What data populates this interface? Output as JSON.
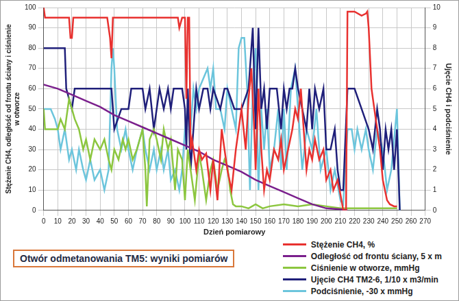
{
  "chart_data": {
    "type": "line",
    "x_label": "Dzień pomiarowy",
    "y_label": [
      "Stężenie CH4, odległość od frontu ściany i ciśnienie",
      "w otworze"
    ],
    "y2_label": "Ujęcie CH4 i podciśnienie",
    "annotations": [
      "Otwór odmetanowania TM5: wyniki pomiarów"
    ],
    "xlim": [
      0,
      270
    ],
    "xticks": [
      0,
      10,
      20,
      30,
      40,
      50,
      60,
      70,
      80,
      90,
      100,
      110,
      120,
      130,
      140,
      150,
      160,
      170,
      180,
      190,
      200,
      210,
      220,
      230,
      240,
      250,
      260,
      270
    ],
    "ylim": [
      0,
      100
    ],
    "yticks": [
      0,
      10,
      20,
      30,
      40,
      50,
      60,
      70,
      80,
      90,
      100
    ],
    "y2lim": [
      0,
      10
    ],
    "y2ticks": [
      0,
      1,
      2,
      3,
      4,
      5,
      6,
      7,
      8,
      9,
      10
    ],
    "grid": true,
    "legend": "lower right",
    "series": [
      {
        "name": "Stężenie CH4, %",
        "color": "#e8312f",
        "axis": "y",
        "x": [
          0,
          1,
          18,
          19,
          20,
          21,
          45,
          47,
          48,
          49,
          50,
          95,
          96,
          98,
          100,
          101,
          102,
          103,
          104,
          105,
          108,
          110,
          112,
          115,
          118,
          120,
          123,
          126,
          130,
          133,
          136,
          140,
          143,
          145,
          147,
          149,
          150,
          152,
          154,
          156,
          158,
          160,
          163,
          166,
          168,
          170,
          173,
          176,
          178,
          180,
          182,
          184,
          186,
          188,
          190,
          192,
          195,
          198,
          200,
          203,
          205,
          208,
          210,
          212,
          214,
          215,
          220,
          225,
          228,
          229,
          230,
          232,
          235,
          238,
          240,
          243,
          245,
          248,
          250
        ],
        "values": [
          100,
          95,
          95,
          85,
          85,
          95,
          95,
          85,
          75,
          95,
          95,
          95,
          90,
          95,
          95,
          55,
          95,
          95,
          30,
          35,
          20,
          30,
          25,
          28,
          10,
          25,
          5,
          40,
          20,
          10,
          30,
          50,
          30,
          55,
          70,
          40,
          20,
          60,
          30,
          10,
          20,
          15,
          30,
          25,
          35,
          20,
          30,
          40,
          50,
          45,
          60,
          40,
          20,
          30,
          25,
          35,
          25,
          30,
          15,
          20,
          10,
          15,
          8,
          0,
          0,
          98,
          98,
          96,
          97,
          98,
          90,
          60,
          45,
          30,
          15,
          5,
          3,
          2,
          2
        ]
      },
      {
        "name": "Odległość od frontu ściany, 5 x m",
        "color": "#7a1f8c",
        "axis": "y",
        "x": [
          0,
          10,
          20,
          30,
          40,
          50,
          60,
          70,
          80,
          90,
          100,
          110,
          120,
          130,
          140,
          150,
          160,
          170,
          180,
          190,
          200,
          210,
          215
        ],
        "values": [
          62,
          60,
          57,
          54,
          51,
          47,
          44,
          41,
          38,
          35,
          32,
          29,
          25,
          22,
          19,
          15,
          12,
          9,
          6,
          3,
          1,
          0.5,
          0
        ]
      },
      {
        "name": "Ciśnienie w otworze, mmHg",
        "color": "#8cc63f",
        "axis": "y",
        "x": [
          0,
          1,
          5,
          10,
          12,
          15,
          18,
          20,
          22,
          25,
          28,
          30,
          33,
          36,
          40,
          43,
          46,
          48,
          50,
          53,
          56,
          58,
          60,
          63,
          66,
          70,
          72,
          73,
          75,
          78,
          80,
          83,
          85,
          88,
          90,
          93,
          95,
          98,
          100,
          102,
          104,
          107,
          110,
          112,
          115,
          118,
          120,
          123,
          126,
          128,
          130,
          132,
          134,
          136,
          140,
          145,
          150,
          155,
          160,
          170,
          180,
          190,
          200,
          210,
          215,
          230,
          250
        ],
        "values": [
          50,
          40,
          40,
          40,
          45,
          40,
          55,
          50,
          45,
          40,
          30,
          35,
          25,
          35,
          30,
          35,
          25,
          20,
          30,
          25,
          35,
          30,
          35,
          25,
          30,
          40,
          20,
          2,
          35,
          40,
          35,
          25,
          40,
          30,
          35,
          10,
          30,
          25,
          5,
          30,
          20,
          5,
          28,
          20,
          5,
          20,
          25,
          10,
          20,
          25,
          22,
          10,
          3,
          2,
          2,
          1,
          3,
          1,
          2,
          3,
          2,
          3,
          2,
          1,
          1,
          1,
          1
        ]
      },
      {
        "name": "Ujęcie CH4 TM2-6, 1/10 x m3/min",
        "color": "#1f1f7a",
        "axis": "y2",
        "x": [
          0,
          10,
          15,
          16,
          20,
          22,
          40,
          48,
          50,
          55,
          60,
          62,
          70,
          72,
          75,
          78,
          80,
          82,
          85,
          88,
          90,
          92,
          98,
          100,
          101,
          102,
          104,
          106,
          108,
          110,
          113,
          116,
          118,
          120,
          125,
          128,
          130,
          135,
          140,
          145,
          148,
          150,
          152,
          154,
          156,
          158,
          160,
          165,
          168,
          170,
          172,
          174,
          176,
          178,
          180,
          183,
          186,
          188,
          190,
          192,
          195,
          198,
          200,
          203,
          206,
          208,
          210,
          212,
          215,
          220,
          225,
          230,
          233,
          236,
          238,
          240,
          242,
          244,
          246,
          248,
          250,
          252
        ],
        "values": [
          8,
          8,
          8,
          6,
          5,
          6,
          6,
          6,
          4,
          5,
          5,
          6,
          6,
          5,
          6,
          4,
          5,
          6,
          5,
          6,
          5,
          6,
          6,
          5,
          3,
          6,
          2,
          4,
          6,
          5,
          6,
          6,
          5,
          6,
          5,
          6,
          6,
          5,
          5,
          6,
          9,
          4,
          9,
          5,
          6,
          4,
          6,
          6,
          4,
          6,
          5,
          6,
          6,
          7,
          6,
          5,
          4,
          6,
          4,
          6,
          5,
          6,
          3,
          3,
          4,
          2,
          1,
          1,
          6,
          6,
          5,
          4,
          3,
          5,
          4,
          2,
          4,
          3,
          4,
          2,
          4,
          0
        ]
      },
      {
        "name": "Podciśnienie, -30 x mmHg",
        "color": "#6cc5dc",
        "axis": "y2",
        "x": [
          0,
          5,
          8,
          10,
          12,
          15,
          18,
          20,
          23,
          25,
          28,
          30,
          33,
          36,
          40,
          43,
          46,
          48,
          49,
          50,
          52,
          55,
          58,
          60,
          63,
          66,
          70,
          72,
          75,
          78,
          80,
          83,
          85,
          88,
          90,
          93,
          96,
          98,
          100,
          102,
          104,
          106,
          108,
          110,
          113,
          116,
          118,
          120,
          122,
          125,
          128,
          130,
          133,
          136,
          138,
          140,
          142,
          144,
          146,
          148,
          150,
          152,
          154,
          156,
          158,
          160,
          163,
          166,
          168,
          170,
          172,
          175,
          178,
          180,
          183,
          186,
          190,
          193,
          196,
          200,
          203,
          206,
          210,
          212,
          215,
          218,
          220,
          222,
          225,
          228,
          230,
          233,
          236,
          240,
          243,
          246,
          250,
          252
        ],
        "values": [
          5,
          5,
          4.5,
          4,
          3,
          4,
          2.5,
          3,
          2,
          3,
          2,
          1.5,
          2.5,
          1.5,
          2,
          1,
          2,
          7,
          8,
          7,
          4,
          3,
          4,
          3,
          2,
          3,
          4,
          3,
          2,
          3,
          2,
          3,
          2,
          3,
          1.5,
          2,
          1,
          2,
          4,
          5,
          4,
          6,
          5,
          6,
          6.5,
          7,
          6,
          7,
          5,
          5,
          4,
          6,
          5,
          4,
          8,
          8.5,
          8.5,
          6,
          1,
          6,
          8,
          1,
          5,
          3,
          5,
          2,
          3,
          5,
          2,
          5,
          2,
          6,
          7,
          5,
          2,
          4,
          3,
          5,
          2,
          3,
          1,
          2,
          0.5,
          0.3,
          4,
          4,
          3,
          4,
          3,
          4,
          3,
          2,
          4,
          3,
          1,
          2,
          5,
          0
        ]
      }
    ]
  }
}
